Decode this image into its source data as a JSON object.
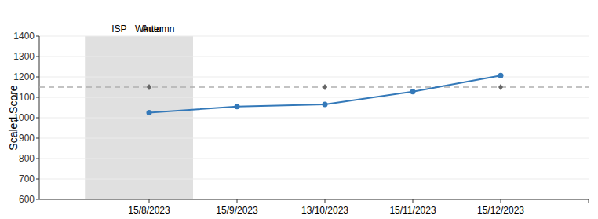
{
  "chart_data": {
    "type": "line",
    "y_label": "Scaled Score",
    "categories": [
      "15/8/2023",
      "15/9/2023",
      "13/10/2023",
      "15/11/2023",
      "15/12/2023"
    ],
    "series": [
      {
        "values": [
          1025,
          1055,
          1065,
          1128,
          1207
        ],
        "color": "#3479b9",
        "marker": "circle",
        "line_style": "solid"
      },
      {
        "type": "scatter",
        "values": [
          1150,
          null,
          1150,
          null,
          1150
        ],
        "color": "#666666",
        "marker": "diamond"
      }
    ],
    "reference_line": {
      "value": 1150,
      "color": "#b0b0b0",
      "line_style": "dashed"
    },
    "bands": [
      {
        "label": "ISP",
        "start": -0.73,
        "end": 0.05
      },
      {
        "label": "Autumn",
        "start": -0.29,
        "end": 0.5
      },
      {
        "label": "Winter",
        "start": -0.4,
        "end": 0.39
      }
    ],
    "band_color": "#e0e0e0",
    "ylim": [
      600,
      1400
    ],
    "yticks": [
      600,
      700,
      800,
      900,
      1000,
      1100,
      1200,
      1300,
      1400
    ],
    "grid": true
  }
}
